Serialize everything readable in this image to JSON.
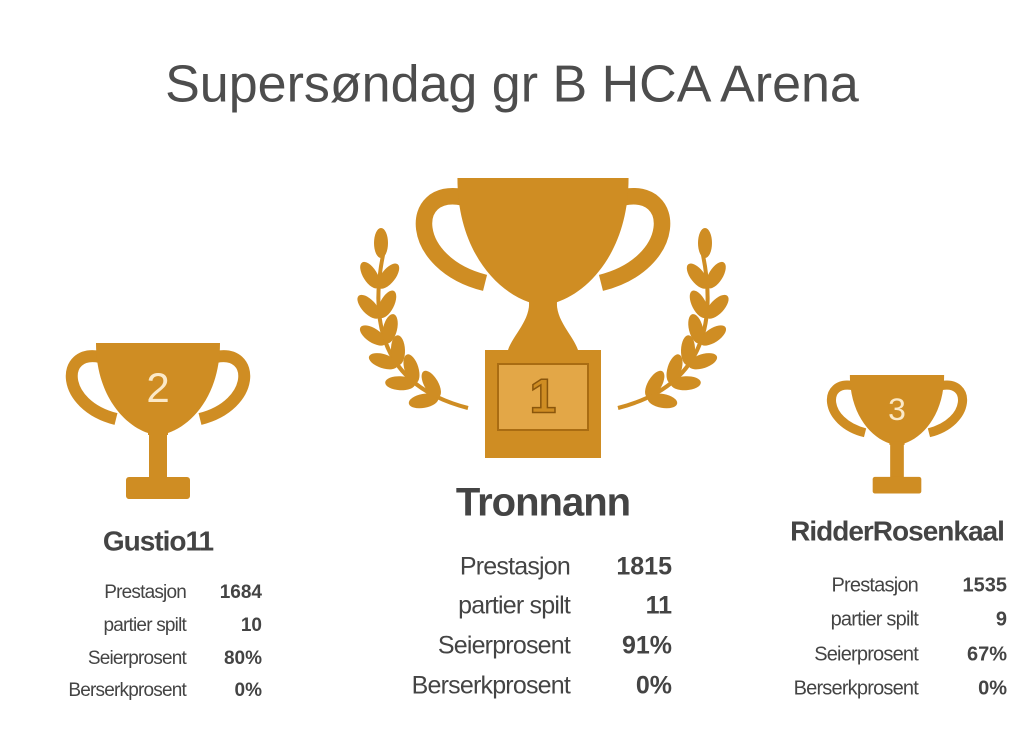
{
  "title": "Supersøndag gr B HCA Arena",
  "podium": [
    {
      "rank": "2",
      "name": "Gustio11",
      "stats": [
        {
          "label": "Prestasjon",
          "value": "1684"
        },
        {
          "label": "partier spilt",
          "value": "10"
        },
        {
          "label": "Seierprosent",
          "value": "80%"
        },
        {
          "label": "Berserkprosent",
          "value": "0%"
        }
      ]
    },
    {
      "rank": "1",
      "name": "Tronnann",
      "stats": [
        {
          "label": "Prestasjon",
          "value": "1815"
        },
        {
          "label": "partier spilt",
          "value": "11"
        },
        {
          "label": "Seierprosent",
          "value": "91%"
        },
        {
          "label": "Berserkprosent",
          "value": "0%"
        }
      ]
    },
    {
      "rank": "3",
      "name": "RidderRosenkaal",
      "stats": [
        {
          "label": "Prestasjon",
          "value": "1535"
        },
        {
          "label": "partier spilt",
          "value": "9"
        },
        {
          "label": "Seierprosent",
          "value": "67%"
        },
        {
          "label": "Berserkprosent",
          "value": "0%"
        }
      ]
    }
  ]
}
